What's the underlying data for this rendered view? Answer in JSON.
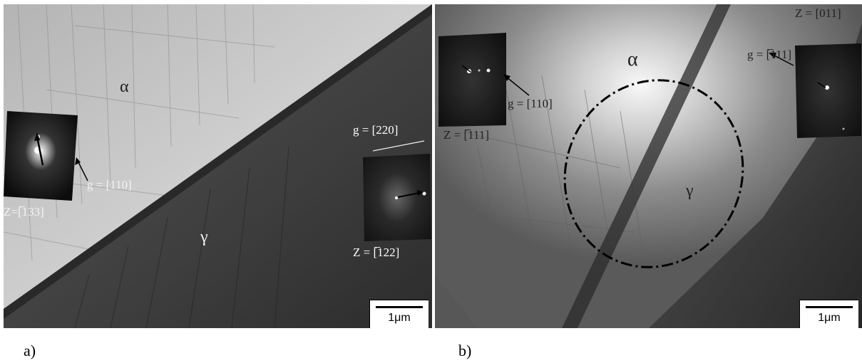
{
  "panel_a": {
    "caption": "a)",
    "alpha_label": "α",
    "gamma_label": "γ",
    "left_pattern_g": "g = [110]",
    "left_pattern_z": "Z=[̅133]",
    "right_pattern_g": "g = [220]",
    "right_pattern_z": "Z = [̅122]",
    "scale_label": "1μm"
  },
  "panel_b": {
    "caption": "b)",
    "alpha_label": "α",
    "gamma_label": "γ",
    "left_pattern_g": "g = [110]",
    "left_pattern_z": "Z = [̅111]",
    "right_pattern_z": "Z = [011]",
    "right_pattern_g": "g = [̅111]",
    "scale_label": "1μm"
  },
  "colors": {
    "bright_phase": "#c8c8c8",
    "dark_phase": "#333333",
    "label_text": "#ffffff"
  }
}
